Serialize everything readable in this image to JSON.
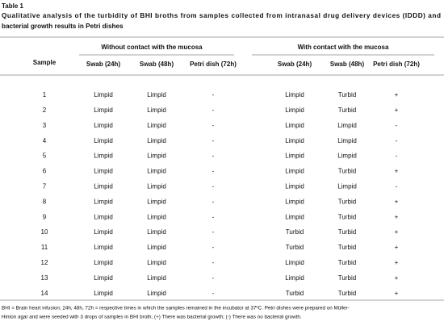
{
  "header": {
    "title": "Table 1",
    "caption": [
      "Qualitative analysis of the turbidity of BHI broths from samples collected from intranasal drug delivery devices (IDDD) and",
      "bacterial growth results in Petri dishes"
    ]
  },
  "table": {
    "groups": [
      "Without contact with the mucosa",
      "With contact with the mucosa"
    ],
    "columns": [
      "Sample",
      "Swab (24h)",
      "Swab (48h)",
      "Petri dish (72h)",
      "Swab (24h)",
      "Swab (48h)",
      "Petri dish (72h)"
    ],
    "rows": [
      [
        "1",
        "Limpid",
        "Limpid",
        "-",
        "Limpid",
        "Turbid",
        "+"
      ],
      [
        "2",
        "Limpid",
        "Limpid",
        "-",
        "Limpid",
        "Turbid",
        "+"
      ],
      [
        "3",
        "Limpid",
        "Limpid",
        "-",
        "Limpid",
        "Limpid",
        "-"
      ],
      [
        "4",
        "Limpid",
        "Limpid",
        "-",
        "Limpid",
        "Limpid",
        "-"
      ],
      [
        "5",
        "Limpid",
        "Limpid",
        "-",
        "Limpid",
        "Limpid",
        "-"
      ],
      [
        "6",
        "Limpid",
        "Limpid",
        "-",
        "Limpid",
        "Turbid",
        "+"
      ],
      [
        "7",
        "Limpid",
        "Limpid",
        "-",
        "Limpid",
        "Limpid",
        "-"
      ],
      [
        "8",
        "Limpid",
        "Limpid",
        "-",
        "Limpid",
        "Turbid",
        "+"
      ],
      [
        "9",
        "Limpid",
        "Limpid",
        "-",
        "Limpid",
        "Turbid",
        "+"
      ],
      [
        "10",
        "Limpid",
        "Limpid",
        "-",
        "Turbid",
        "Turbid",
        "+"
      ],
      [
        "11",
        "Limpid",
        "Limpid",
        "-",
        "Turbid",
        "Turbid",
        "+"
      ],
      [
        "12",
        "Limpid",
        "Limpid",
        "-",
        "Limpid",
        "Turbid",
        "+"
      ],
      [
        "13",
        "Limpid",
        "Limpid",
        "-",
        "Limpid",
        "Turbid",
        "+"
      ],
      [
        "14",
        "Limpid",
        "Limpid",
        "-",
        "Turbid",
        "Turbid",
        "+"
      ]
    ]
  },
  "footnote": [
    "BHI = Brain heart infusion; 24h, 48h, 72h = respective times in which the samples remained in the incubator at 37ºC. Petri dishes were prepared on Müller-",
    "Hinton agar and were seeded with 3 drops of samples in BHI broth; (+) There was bacterial growth; (-) There was no bacterial growth."
  ]
}
